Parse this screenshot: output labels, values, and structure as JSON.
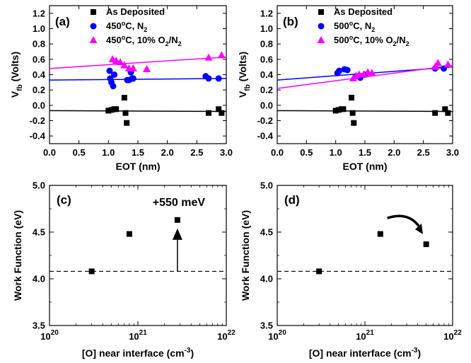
{
  "chart_data": [
    {
      "panel": "(a)",
      "type": "scatter",
      "xlabel": "EOT (nm)",
      "ylabel_main": "V",
      "ylabel_sub": "fb",
      "ylabel_rest": " (Volts)",
      "xlim": [
        0.0,
        3.0
      ],
      "ylim": [
        -0.5,
        1.3
      ],
      "xticks": [
        "0.0",
        "0.5",
        "1.0",
        "1.5",
        "2.0",
        "2.5",
        "3.0"
      ],
      "yticks": [
        "-0.4",
        "-0.2",
        "0.0",
        "0.2",
        "0.4",
        "0.6",
        "0.8",
        "1.0",
        "1.2"
      ],
      "legend": [
        {
          "parts": [
            {
              "t": "As Deposited"
            }
          ],
          "marker": "square",
          "color": "#000000"
        },
        {
          "parts": [
            {
              "t": "450"
            },
            {
              "t": "o",
              "sup": true
            },
            {
              "t": "C, N"
            },
            {
              "t": "2",
              "sub": true
            }
          ],
          "marker": "circle",
          "color": "#0000ff"
        },
        {
          "parts": [
            {
              "t": "450"
            },
            {
              "t": "o",
              "sup": true
            },
            {
              "t": "C, 10% O"
            },
            {
              "t": "2",
              "sub": true
            },
            {
              "t": "/N"
            },
            {
              "t": "2",
              "sub": true
            }
          ],
          "marker": "triangle",
          "color": "#ff00ff"
        }
      ],
      "series": [
        {
          "marker": "square",
          "color": "#000000",
          "x": [
            1.0,
            1.05,
            1.1,
            1.13,
            1.27,
            1.29,
            1.31,
            2.7,
            2.87,
            2.92
          ],
          "y": [
            -0.07,
            -0.06,
            -0.05,
            -0.05,
            0.1,
            -0.1,
            -0.23,
            -0.1,
            -0.05,
            -0.1
          ],
          "fit": {
            "x": [
              0.0,
              3.0
            ],
            "y": [
              -0.07,
              -0.08
            ]
          }
        },
        {
          "marker": "circle",
          "color": "#0000ff",
          "x": [
            1.02,
            1.05,
            1.08,
            1.1,
            1.03,
            1.32,
            1.35,
            1.38,
            1.4,
            1.42,
            2.65,
            2.7,
            2.87
          ],
          "y": [
            0.45,
            0.3,
            0.25,
            0.4,
            0.35,
            0.33,
            0.33,
            0.43,
            0.35,
            0.35,
            0.38,
            0.35,
            0.35
          ],
          "fit": {
            "x": [
              0.0,
              3.0
            ],
            "y": [
              0.33,
              0.35
            ]
          }
        },
        {
          "marker": "triangle",
          "color": "#ff00ff",
          "x": [
            1.07,
            1.13,
            1.2,
            1.27,
            1.35,
            1.42,
            1.65,
            2.7,
            2.92
          ],
          "y": [
            0.6,
            0.58,
            0.56,
            0.52,
            0.48,
            0.48,
            0.47,
            0.62,
            0.65
          ],
          "fit": {
            "x": [
              0.0,
              3.0
            ],
            "y": [
              0.48,
              0.63
            ]
          }
        }
      ]
    },
    {
      "panel": "(b)",
      "type": "scatter",
      "xlabel": "EOT (nm)",
      "ylabel_main": "V",
      "ylabel_sub": "fb",
      "ylabel_rest": " (Volts)",
      "xlim": [
        0.0,
        3.0
      ],
      "ylim": [
        -0.5,
        1.3
      ],
      "xticks": [
        "0.0",
        "0.5",
        "1.0",
        "1.5",
        "2.0",
        "2.5",
        "3.0"
      ],
      "yticks": [
        "-0.4",
        "-0.2",
        "0.0",
        "0.2",
        "0.4",
        "0.6",
        "0.8",
        "1.0",
        "1.2"
      ],
      "legend": [
        {
          "parts": [
            {
              "t": "As Deposited"
            }
          ],
          "marker": "square",
          "color": "#000000"
        },
        {
          "parts": [
            {
              "t": "500"
            },
            {
              "t": "o",
              "sup": true
            },
            {
              "t": "C, N"
            },
            {
              "t": "2",
              "sub": true
            }
          ],
          "marker": "circle",
          "color": "#0000ff"
        },
        {
          "parts": [
            {
              "t": "500"
            },
            {
              "t": "o",
              "sup": true
            },
            {
              "t": "C, 10% O"
            },
            {
              "t": "2",
              "sub": true
            },
            {
              "t": "/N"
            },
            {
              "t": "2",
              "sub": true
            }
          ],
          "marker": "triangle",
          "color": "#ff00ff"
        }
      ],
      "series": [
        {
          "marker": "square",
          "color": "#000000",
          "x": [
            1.0,
            1.05,
            1.1,
            1.13,
            1.27,
            1.29,
            1.31,
            2.7,
            2.87,
            2.92
          ],
          "y": [
            -0.07,
            -0.06,
            -0.05,
            -0.05,
            0.1,
            -0.1,
            -0.23,
            -0.1,
            -0.05,
            -0.1
          ],
          "fit": {
            "x": [
              0.0,
              3.0
            ],
            "y": [
              -0.07,
              -0.08
            ]
          }
        },
        {
          "marker": "circle",
          "color": "#0000ff",
          "x": [
            1.03,
            1.06,
            1.15,
            1.2,
            1.35,
            1.42,
            1.5,
            2.7,
            2.85
          ],
          "y": [
            0.42,
            0.45,
            0.47,
            0.46,
            0.38,
            0.36,
            0.4,
            0.48,
            0.48
          ],
          "fit": {
            "x": [
              0.0,
              3.0
            ],
            "y": [
              0.33,
              0.5
            ]
          }
        },
        {
          "marker": "triangle",
          "color": "#ff00ff",
          "x": [
            1.3,
            1.35,
            1.4,
            1.48,
            1.55,
            1.62,
            2.7,
            2.75,
            2.92
          ],
          "y": [
            0.35,
            0.38,
            0.4,
            0.4,
            0.43,
            0.42,
            0.5,
            0.55,
            0.53
          ],
          "fit": {
            "x": [
              0.0,
              3.0
            ],
            "y": [
              0.22,
              0.52
            ]
          }
        }
      ]
    },
    {
      "panel": "(c)",
      "type": "scatter",
      "xscale": "log",
      "xlabel_pre": "[O] near interface (cm",
      "xlabel_sup": "-3",
      "xlabel_post": ")",
      "ylabel": "Work Function (eV)",
      "xlim": [
        1e+20,
        1e+22
      ],
      "ylim": [
        3.5,
        5.0
      ],
      "xticks": [
        {
          "base": "10",
          "exp": "20",
          "v": 1e+20
        },
        {
          "base": "10",
          "exp": "21",
          "v": 1e+21
        },
        {
          "base": "10",
          "exp": "22",
          "v": 1e+22
        }
      ],
      "yticks": [
        "3.5",
        "4.0",
        "4.5",
        "5.0"
      ],
      "points": {
        "x": [
          3e+20,
          8e+20,
          2.8e+21
        ],
        "y": [
          4.08,
          4.48,
          4.63
        ]
      },
      "reference_line": 4.08,
      "annotation": "+550 meV",
      "arrow": "straight",
      "arrow_x": 2.8e+21,
      "arrow_from": 4.08,
      "arrow_to": 4.63
    },
    {
      "panel": "(d)",
      "type": "scatter",
      "xscale": "log",
      "xlabel_pre": "[O] near interface (cm",
      "xlabel_sup": "-3",
      "xlabel_post": ")",
      "ylabel": "Work Function (eV)",
      "xlim": [
        1e+20,
        1e+22
      ],
      "ylim": [
        3.5,
        5.0
      ],
      "xticks": [
        {
          "base": "10",
          "exp": "20",
          "v": 1e+20
        },
        {
          "base": "10",
          "exp": "21",
          "v": 1e+21
        },
        {
          "base": "10",
          "exp": "22",
          "v": 1e+22
        }
      ],
      "yticks": [
        "3.5",
        "4.0",
        "4.5",
        "5.0"
      ],
      "points": {
        "x": [
          3e+20,
          1.5e+21,
          5e+21
        ],
        "y": [
          4.08,
          4.48,
          4.37
        ]
      },
      "reference_line": 4.08,
      "annotation": "",
      "arrow": "curved",
      "arrow_from_x": 1.8e+21,
      "arrow_from_y": 4.65,
      "arrow_to_x": 4.5e+21,
      "arrow_to_y": 4.5
    }
  ]
}
